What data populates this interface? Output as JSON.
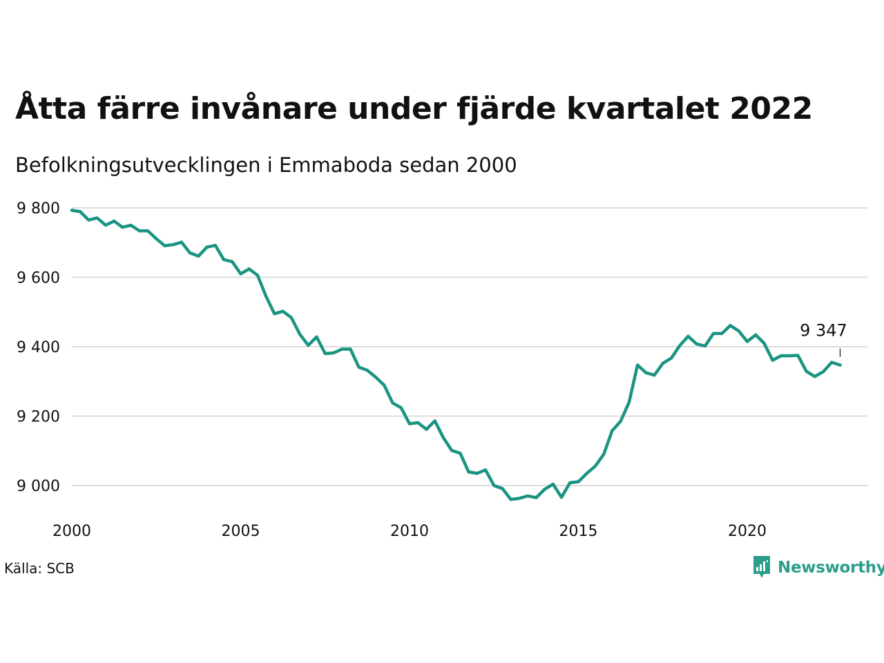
{
  "title": "Åtta färre invånare under fjärde kvartalet 2022",
  "subtitle": "Befolkningsutvecklingen i Emmaboda sedan 2000",
  "source": "Källa: SCB",
  "brand": {
    "name": "Newsworthy",
    "color": "#2a9e8a",
    "icon": "newsworthy-logo-icon"
  },
  "chart_data": {
    "type": "line",
    "title": "Åtta färre invånare under fjärde kvartalet 2022",
    "subtitle": "Befolkningsutvecklingen i Emmaboda sedan 2000",
    "xlabel": "",
    "ylabel": "",
    "xlim": [
      2000,
      2023.5
    ],
    "ylim": [
      8920,
      9840
    ],
    "grid": true,
    "legend": "none",
    "line_color": "#1a9482",
    "x_ticks": [
      2000,
      2005,
      2010,
      2015,
      2020
    ],
    "x_tick_labels": [
      "2000",
      "2005",
      "2010",
      "2015",
      "2020"
    ],
    "y_ticks": [
      9000,
      9200,
      9400,
      9600,
      9800
    ],
    "y_tick_labels": [
      "9 000",
      "9 200",
      "9 400",
      "9 600",
      "9 800"
    ],
    "annotation": {
      "text": "9 347",
      "x": 2022.75,
      "y": 9347
    },
    "x": [
      2000,
      2000.25,
      2000.5,
      2000.75,
      2001,
      2001.25,
      2001.5,
      2001.75,
      2002,
      2002.25,
      2002.5,
      2002.75,
      2003,
      2003.25,
      2003.5,
      2003.75,
      2004,
      2004.25,
      2004.5,
      2004.75,
      2005,
      2005.25,
      2005.5,
      2005.75,
      2006,
      2006.25,
      2006.5,
      2006.75,
      2007,
      2007.25,
      2007.5,
      2007.75,
      2008,
      2008.25,
      2008.5,
      2008.75,
      2009,
      2009.25,
      2009.5,
      2009.75,
      2010,
      2010.25,
      2010.5,
      2010.75,
      2011,
      2011.25,
      2011.5,
      2011.75,
      2012,
      2012.25,
      2012.5,
      2012.75,
      2013,
      2013.25,
      2013.5,
      2013.75,
      2014,
      2014.25,
      2014.5,
      2014.75,
      2015,
      2015.25,
      2015.5,
      2015.75,
      2016,
      2016.25,
      2016.5,
      2016.75,
      2017,
      2017.25,
      2017.5,
      2017.75,
      2018,
      2018.25,
      2018.5,
      2018.75,
      2019,
      2019.25,
      2019.5,
      2019.75,
      2020,
      2020.25,
      2020.5,
      2020.75,
      2021,
      2021.25,
      2021.5,
      2021.75,
      2022,
      2022.25,
      2022.5,
      2022.75
    ],
    "y": [
      9793,
      9789,
      9765,
      9771,
      9750,
      9762,
      9744,
      9750,
      9734,
      9734,
      9711,
      9691,
      9694,
      9701,
      9670,
      9661,
      9687,
      9692,
      9651,
      9645,
      9610,
      9624,
      9606,
      9545,
      9495,
      9502,
      9484,
      9436,
      9404,
      9428,
      9380,
      9382,
      9393,
      9393,
      9341,
      9332,
      9312,
      9289,
      9238,
      9224,
      9178,
      9181,
      9162,
      9186,
      9138,
      9101,
      9093,
      9039,
      9035,
      9045,
      9000,
      8991,
      8960,
      8963,
      8970,
      8965,
      8989,
      9004,
      8966,
      9008,
      9011,
      9035,
      9056,
      9090,
      9158,
      9185,
      9240,
      9347,
      9325,
      9318,
      9352,
      9367,
      9403,
      9430,
      9408,
      9402,
      9438,
      9438,
      9461,
      9445,
      9415,
      9434,
      9410,
      9361,
      9374,
      9374,
      9375,
      9329,
      9314,
      9328,
      9355,
      9347
    ]
  }
}
